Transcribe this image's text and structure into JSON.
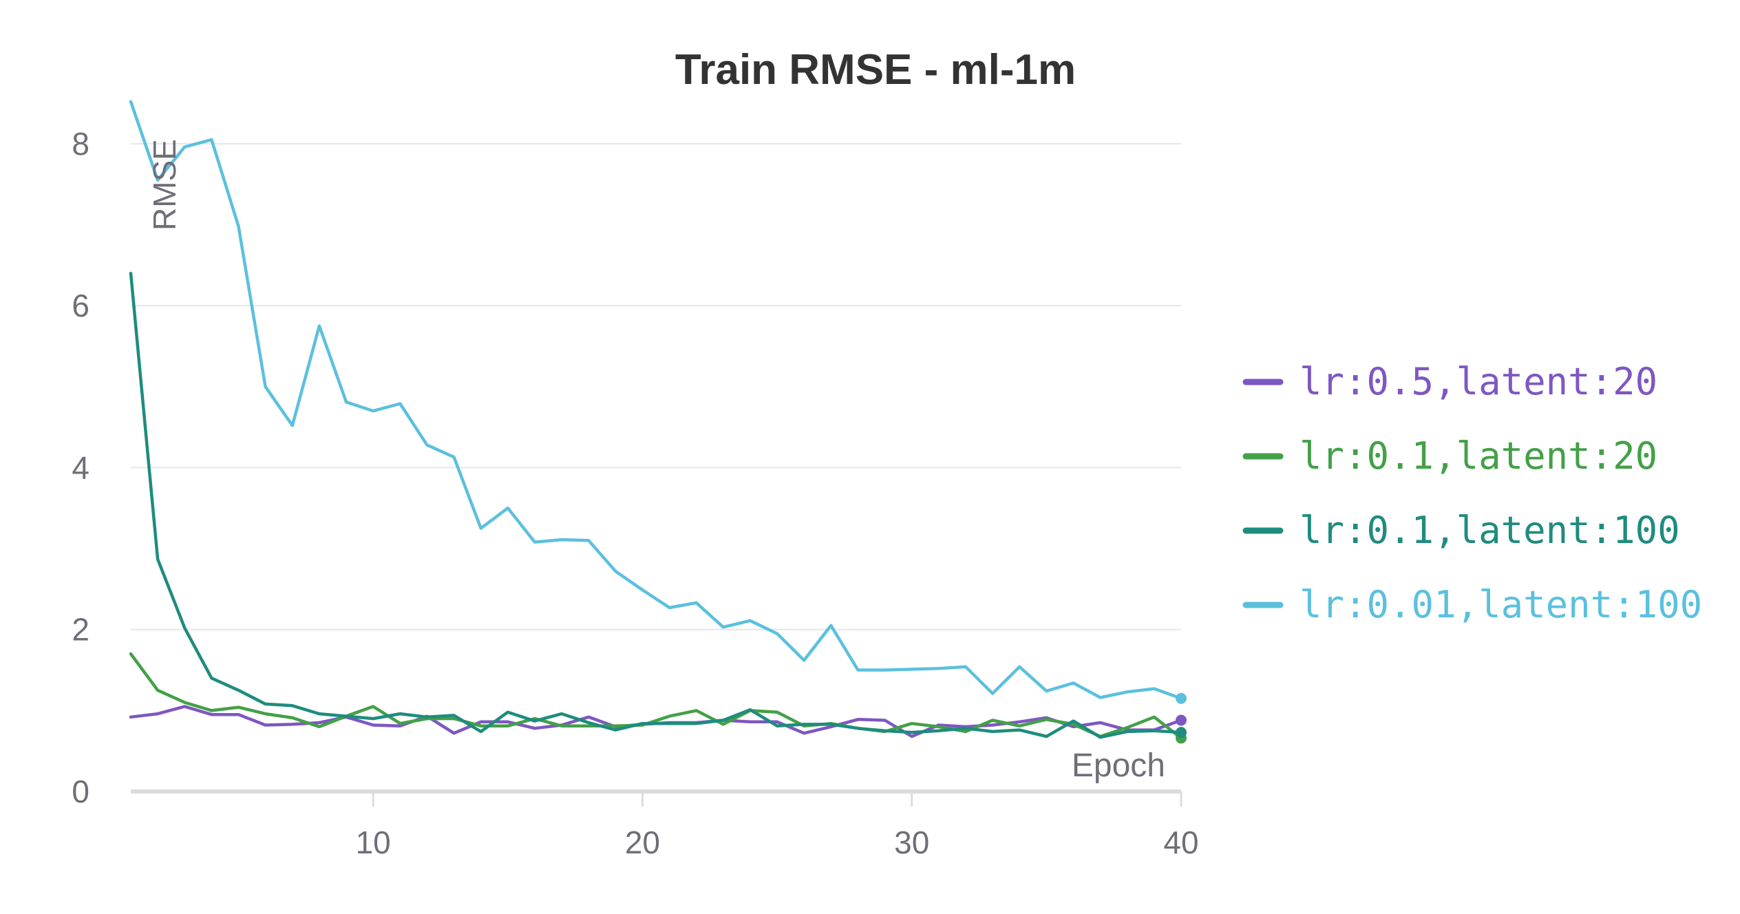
{
  "chart_data": {
    "type": "line",
    "title": "Train RMSE - ml-1m",
    "xlabel": "Epoch",
    "ylabel": "RMSE",
    "xlim": [
      1,
      40
    ],
    "ylim": [
      0,
      8.5
    ],
    "x_ticks": [
      10,
      20,
      30,
      40
    ],
    "y_ticks": [
      0,
      2,
      4,
      6,
      8
    ],
    "grid": true,
    "legend_position": "right",
    "x": [
      1,
      2,
      3,
      4,
      5,
      6,
      7,
      8,
      9,
      10,
      11,
      12,
      13,
      14,
      15,
      16,
      17,
      18,
      19,
      20,
      21,
      22,
      23,
      24,
      25,
      26,
      27,
      28,
      29,
      30,
      31,
      32,
      33,
      34,
      35,
      36,
      37,
      38,
      39,
      40
    ],
    "series": [
      {
        "name": "lr:0.5,latent:20",
        "color": "#7e57c2",
        "values": [
          0.92,
          0.96,
          1.05,
          0.95,
          0.95,
          0.82,
          0.83,
          0.85,
          0.92,
          0.82,
          0.81,
          0.93,
          0.72,
          0.86,
          0.86,
          0.78,
          0.82,
          0.92,
          0.8,
          0.83,
          0.85,
          0.85,
          0.88,
          0.86,
          0.86,
          0.72,
          0.8,
          0.89,
          0.88,
          0.68,
          0.82,
          0.8,
          0.82,
          0.86,
          0.91,
          0.8,
          0.85,
          0.76,
          0.76,
          0.88
        ]
      },
      {
        "name": "lr:0.1,latent:20",
        "color": "#43a047",
        "values": [
          1.7,
          1.25,
          1.1,
          1.0,
          1.04,
          0.96,
          0.91,
          0.8,
          0.93,
          1.05,
          0.84,
          0.9,
          0.9,
          0.81,
          0.81,
          0.9,
          0.81,
          0.81,
          0.81,
          0.82,
          0.93,
          1.0,
          0.83,
          1.0,
          0.98,
          0.81,
          0.84,
          0.78,
          0.74,
          0.84,
          0.8,
          0.74,
          0.88,
          0.81,
          0.89,
          0.83,
          0.68,
          0.79,
          0.92,
          0.66
        ]
      },
      {
        "name": "lr:0.1,latent:100",
        "color": "#1e8c7e",
        "values": [
          6.4,
          2.87,
          2.02,
          1.4,
          1.25,
          1.08,
          1.06,
          0.96,
          0.93,
          0.9,
          0.96,
          0.92,
          0.94,
          0.74,
          0.98,
          0.87,
          0.96,
          0.85,
          0.76,
          0.84,
          0.84,
          0.84,
          0.88,
          1.01,
          0.81,
          0.83,
          0.83,
          0.78,
          0.75,
          0.73,
          0.75,
          0.78,
          0.74,
          0.76,
          0.68,
          0.87,
          0.67,
          0.74,
          0.75,
          0.73
        ]
      },
      {
        "name": "lr:0.01,latent:100",
        "color": "#5bc0de",
        "values": [
          8.52,
          7.55,
          7.96,
          8.05,
          6.98,
          5.0,
          4.52,
          5.75,
          4.81,
          4.7,
          4.79,
          4.28,
          4.13,
          3.25,
          3.5,
          3.08,
          3.11,
          3.1,
          2.72,
          2.49,
          2.27,
          2.33,
          2.03,
          2.11,
          1.95,
          1.62,
          2.05,
          1.5,
          1.5,
          1.51,
          1.52,
          1.54,
          1.21,
          1.54,
          1.24,
          1.34,
          1.16,
          1.23,
          1.27,
          1.15
        ]
      }
    ]
  }
}
